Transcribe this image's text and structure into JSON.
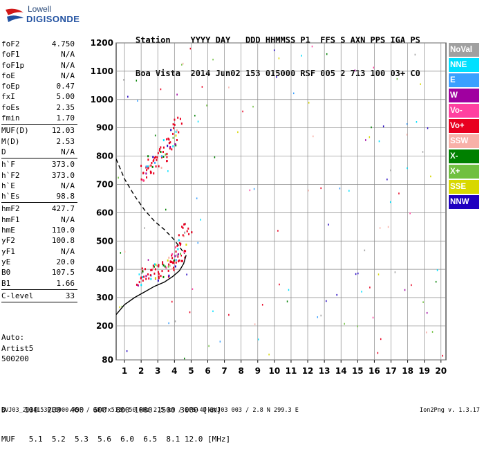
{
  "logo": {
    "line1": "Lowell",
    "line2": "DIGISONDE"
  },
  "header": {
    "labels": "Station    YYYY DAY   DDD HHMMSS P1  FFS S AXN PPS IGA PS",
    "values": "Boa Vista  2014 Jun02 153 015000 RSF 005 2 713 100 03+ C0"
  },
  "params": {
    "g1": [
      [
        "foF2",
        "4.750"
      ],
      [
        "foF1",
        "N/A"
      ],
      [
        "foF1p",
        "N/A"
      ],
      [
        "foE",
        "N/A"
      ],
      [
        "foEp",
        "0.47"
      ],
      [
        "fxI",
        "5.00"
      ],
      [
        "foEs",
        "2.35"
      ],
      [
        "fmin",
        "1.70"
      ]
    ],
    "g2": [
      [
        "MUF(D)",
        "12.03"
      ],
      [
        "M(D)",
        "2.53"
      ],
      [
        "D",
        "N/A"
      ]
    ],
    "g3": [
      [
        "h`F",
        "373.0"
      ],
      [
        "h`F2",
        "373.0"
      ],
      [
        "h`E",
        "N/A"
      ],
      [
        "h`Es",
        "98.8"
      ]
    ],
    "g4": [
      [
        "hmF2",
        "427.7"
      ],
      [
        "hmF1",
        "N/A"
      ],
      [
        "hmE",
        "110.0"
      ],
      [
        "yF2",
        "100.8"
      ],
      [
        "yF1",
        "N/A"
      ],
      [
        "yE",
        "20.0"
      ],
      [
        "B0",
        "107.5"
      ],
      [
        "B1",
        "1.66"
      ]
    ],
    "g5": [
      [
        "C-level",
        "33"
      ]
    ]
  },
  "auto": {
    "line1": "Auto:",
    "line2": "Artist5",
    "line3": "500200"
  },
  "legend": [
    {
      "label": "NoVal",
      "color": "#a0a0a0"
    },
    {
      "label": "NNE",
      "color": "#00e0ff"
    },
    {
      "label": "E",
      "color": "#3aa0ff"
    },
    {
      "label": "W",
      "color": "#a000a0"
    },
    {
      "label": "Vo-",
      "color": "#ff40a0"
    },
    {
      "label": "Vo+",
      "color": "#e80020"
    },
    {
      "label": "SSW",
      "color": "#f8b0a8"
    },
    {
      "label": "X-",
      "color": "#008000"
    },
    {
      "label": "X+",
      "color": "#70c040"
    },
    {
      "label": "SSE",
      "color": "#d8d800"
    },
    {
      "label": "NNW",
      "color": "#2000c0"
    }
  ],
  "footer": {
    "d_row": "D    100  200  400  600  800 1000 1500 3000 [km]",
    "muf_row": "MUF   5.1  5.2  5.3  5.6  6.0  6.5  8.1 12.0 [MHz]",
    "file": "BVJ03_2014153015000.RSF / 384fx512h 50 kHz 2.5 km / DPS-4D BVJ03 003 / 2.8 N 299.3 E",
    "version": "Ion2Png v. 1.3.17"
  },
  "chart_data": {
    "type": "scatter",
    "title": "",
    "xlabel": "",
    "ylabel": "",
    "xlim": [
      0.5,
      20.3
    ],
    "ylim": [
      80,
      1200
    ],
    "grid": true,
    "x_ticks": [
      "1",
      "2",
      "3",
      "4",
      "5",
      "6",
      "7",
      "8",
      "9",
      "10",
      "11",
      "12",
      "13",
      "14",
      "15",
      "16",
      "17",
      "18",
      "19",
      "20"
    ],
    "y_ticks": [
      "80",
      "200",
      "300",
      "400",
      "500",
      "600",
      "700",
      "800",
      "900",
      "1000",
      "1100",
      "1200"
    ],
    "series": [
      {
        "color": "#e80020",
        "x": [
          2.0,
          2.3,
          2.7,
          3.0,
          3.3,
          3.6,
          3.9,
          4.1,
          4.3,
          4.5,
          4.7
        ],
        "y": [
          375,
          380,
          385,
          392,
          400,
          410,
          425,
          440,
          460,
          495,
          540
        ]
      },
      {
        "color": "#e80020",
        "x": [
          2.1,
          2.4,
          2.7,
          3.0,
          3.3,
          3.6,
          3.9,
          4.1
        ],
        "y": [
          740,
          760,
          775,
          790,
          815,
          840,
          870,
          910
        ]
      }
    ],
    "curves": [
      {
        "color": "#000000",
        "style": "solid",
        "x": [
          0.5,
          1.0,
          1.6,
          2.2,
          2.8,
          3.4,
          3.9,
          4.3,
          4.55,
          4.7
        ],
        "y": [
          240,
          275,
          300,
          320,
          340,
          355,
          375,
          395,
          420,
          450
        ]
      },
      {
        "color": "#000000",
        "style": "dashed",
        "x": [
          0.5,
          1.0,
          1.6,
          2.2,
          2.8,
          3.4,
          3.9,
          4.3,
          4.6
        ],
        "y": [
          790,
          720,
          660,
          610,
          570,
          540,
          510,
          480,
          455
        ]
      }
    ]
  }
}
